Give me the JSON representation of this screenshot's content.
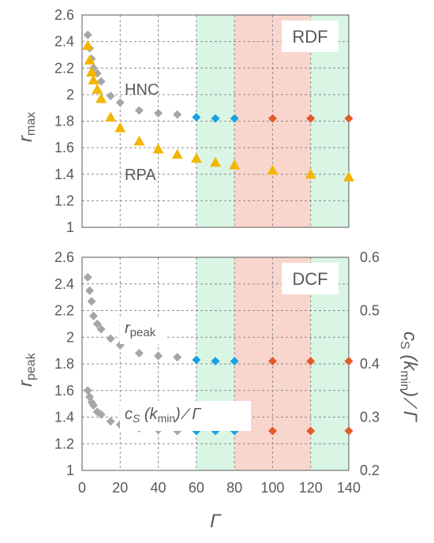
{
  "chart_data": [
    {
      "type": "scatter",
      "panel_label": "RDF",
      "ylabel": "r",
      "ylabel_sub": "max",
      "xlim": [
        0,
        140
      ],
      "ylim": [
        1,
        2.6
      ],
      "x_ticks": [
        "0",
        "20",
        "40",
        "60",
        "80",
        "100",
        "120",
        "140"
      ],
      "y_ticks": [
        "1",
        "1.2",
        "1.4",
        "1.6",
        "1.8",
        "2",
        "2.2",
        "2.4",
        "2.6"
      ],
      "grid": true,
      "bands": [
        {
          "from": 60,
          "to": 80,
          "color": "#d9f5e4"
        },
        {
          "from": 80,
          "to": 120,
          "color": "#f9d6cd"
        },
        {
          "from": 120,
          "to": 140,
          "color": "#d9f5e4"
        }
      ],
      "series": [
        {
          "name": "HNC",
          "marker": "diamond",
          "colors": [
            "#a6a6a6",
            "#1ba1e2",
            "#e05a2b"
          ],
          "color_breaks": [
            60,
            100
          ],
          "x": [
            3,
            4,
            5,
            6,
            8,
            10,
            15,
            20,
            30,
            40,
            50,
            60,
            70,
            80,
            100,
            120,
            140
          ],
          "y": [
            2.45,
            2.35,
            2.27,
            2.2,
            2.16,
            2.1,
            1.99,
            1.94,
            1.88,
            1.86,
            1.85,
            1.83,
            1.82,
            1.82,
            1.82,
            1.82,
            1.82
          ]
        },
        {
          "name": "RPA",
          "marker": "triangle",
          "colors": [
            "#f2b600"
          ],
          "color_breaks": [],
          "x": [
            3,
            4,
            5,
            6,
            8,
            10,
            15,
            20,
            30,
            40,
            50,
            60,
            70,
            80,
            100,
            120,
            140
          ],
          "y": [
            2.37,
            2.26,
            2.17,
            2.11,
            2.04,
            1.97,
            1.83,
            1.75,
            1.65,
            1.59,
            1.55,
            1.52,
            1.49,
            1.47,
            1.43,
            1.4,
            1.38
          ]
        }
      ]
    },
    {
      "type": "scatter",
      "panel_label": "DCF",
      "ylabel": "r",
      "ylabel_sub": "peak",
      "xlabel": "Γ",
      "xlim": [
        0,
        140
      ],
      "ylim": [
        1,
        2.6
      ],
      "y2lim": [
        0.2,
        0.6
      ],
      "x_ticks": [
        "0",
        "20",
        "40",
        "60",
        "80",
        "100",
        "120",
        "140"
      ],
      "y_ticks": [
        "1",
        "1.2",
        "1.4",
        "1.6",
        "1.8",
        "2",
        "2.2",
        "2.4",
        "2.6"
      ],
      "y2_ticks": [
        "0.2",
        "0.3",
        "0.4",
        "0.5",
        "0.6"
      ],
      "y2label_a": "c",
      "y2label_s": "S",
      "y2label_b": " (k",
      "y2label_min": "min",
      "y2label_c": ") ∕ Γ",
      "grid": true,
      "bands": [
        {
          "from": 60,
          "to": 80,
          "color": "#d9f5e4"
        },
        {
          "from": 80,
          "to": 120,
          "color": "#f9d6cd"
        },
        {
          "from": 120,
          "to": 140,
          "color": "#d9f5e4"
        }
      ],
      "series": [
        {
          "name": "r_peak",
          "axis": "left",
          "marker": "diamond",
          "colors": [
            "#a6a6a6",
            "#1ba1e2",
            "#e05a2b"
          ],
          "color_breaks": [
            60,
            100
          ],
          "x": [
            3,
            4,
            5,
            6,
            8,
            10,
            15,
            20,
            30,
            40,
            50,
            60,
            70,
            80,
            100,
            120,
            140
          ],
          "y": [
            2.45,
            2.35,
            2.27,
            2.16,
            2.1,
            2.06,
            1.99,
            1.94,
            1.88,
            1.86,
            1.85,
            1.83,
            1.82,
            1.82,
            1.82,
            1.82,
            1.82
          ]
        },
        {
          "name": "c_S(k_min)/Γ",
          "axis": "right",
          "marker": "diamond",
          "colors": [
            "#a6a6a6",
            "#1ba1e2",
            "#e05a2b"
          ],
          "color_breaks": [
            60,
            100
          ],
          "x": [
            3,
            4,
            5,
            6,
            8,
            10,
            15,
            20,
            30,
            40,
            50,
            60,
            70,
            80,
            100,
            120,
            140
          ],
          "y": [
            0.35,
            0.338,
            0.328,
            0.322,
            0.31,
            0.305,
            0.292,
            0.286,
            0.279,
            0.276,
            0.274,
            0.274,
            0.274,
            0.274,
            0.274,
            0.274,
            0.274
          ]
        }
      ]
    }
  ],
  "labels": {
    "hnc": "HNC",
    "rpa": "RPA",
    "r": "r",
    "peak": "peak"
  }
}
